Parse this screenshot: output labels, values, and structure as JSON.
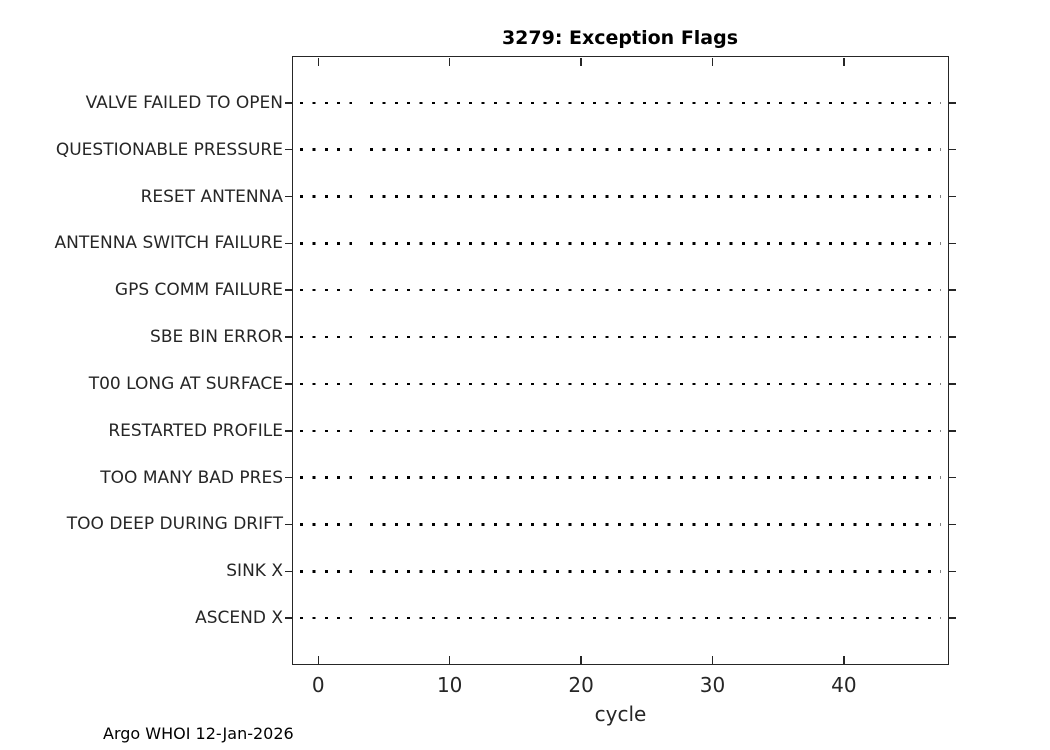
{
  "title": "3279: Exception Flags",
  "footer": "Argo WHOI 12-Jan-2026",
  "x_axis": {
    "label": "cycle",
    "tick_labels": [
      "0",
      "10",
      "20",
      "30",
      "40"
    ]
  },
  "flags": [
    "VALVE FAILED TO OPEN",
    "QUESTIONABLE PRESSURE",
    "RESET ANTENNA",
    "ANTENNA SWITCH FAILURE",
    "GPS COMM FAILURE",
    "SBE BIN ERROR",
    "T00 LONG AT SURFACE",
    "RESTARTED PROFILE",
    "TOO MANY BAD PRES",
    "TOO DEEP DURING DRIFT",
    "SINK X",
    "ASCEND X"
  ],
  "colors": {
    "axis": "#262626",
    "tick_label": "#262626",
    "title": "#000000",
    "grid_dot": "#000000",
    "background": "#ffffff"
  },
  "chart_data": {
    "type": "scatter",
    "title": "3279: Exception Flags",
    "xlabel": "cycle",
    "ylabel": "",
    "xlim": [
      -2,
      48
    ],
    "xticks": [
      0,
      10,
      20,
      30,
      40
    ],
    "categories_top_to_bottom": [
      "VALVE FAILED TO OPEN",
      "QUESTIONABLE PRESSURE",
      "RESET ANTENNA",
      "ANTENNA SWITCH FAILURE",
      "GPS COMM FAILURE",
      "SBE BIN ERROR",
      "T00 LONG AT SURFACE",
      "RESTARTED PROFILE",
      "TOO MANY BAD PRES",
      "TOO DEEP DURING DRIFT",
      "SINK X",
      "ASCEND X"
    ],
    "series": [],
    "points": [],
    "grid": "horizontal dotted baseline per category, no data markers plotted",
    "legend_position": "none",
    "annotation": "Argo WHOI 12-Jan-2026"
  }
}
